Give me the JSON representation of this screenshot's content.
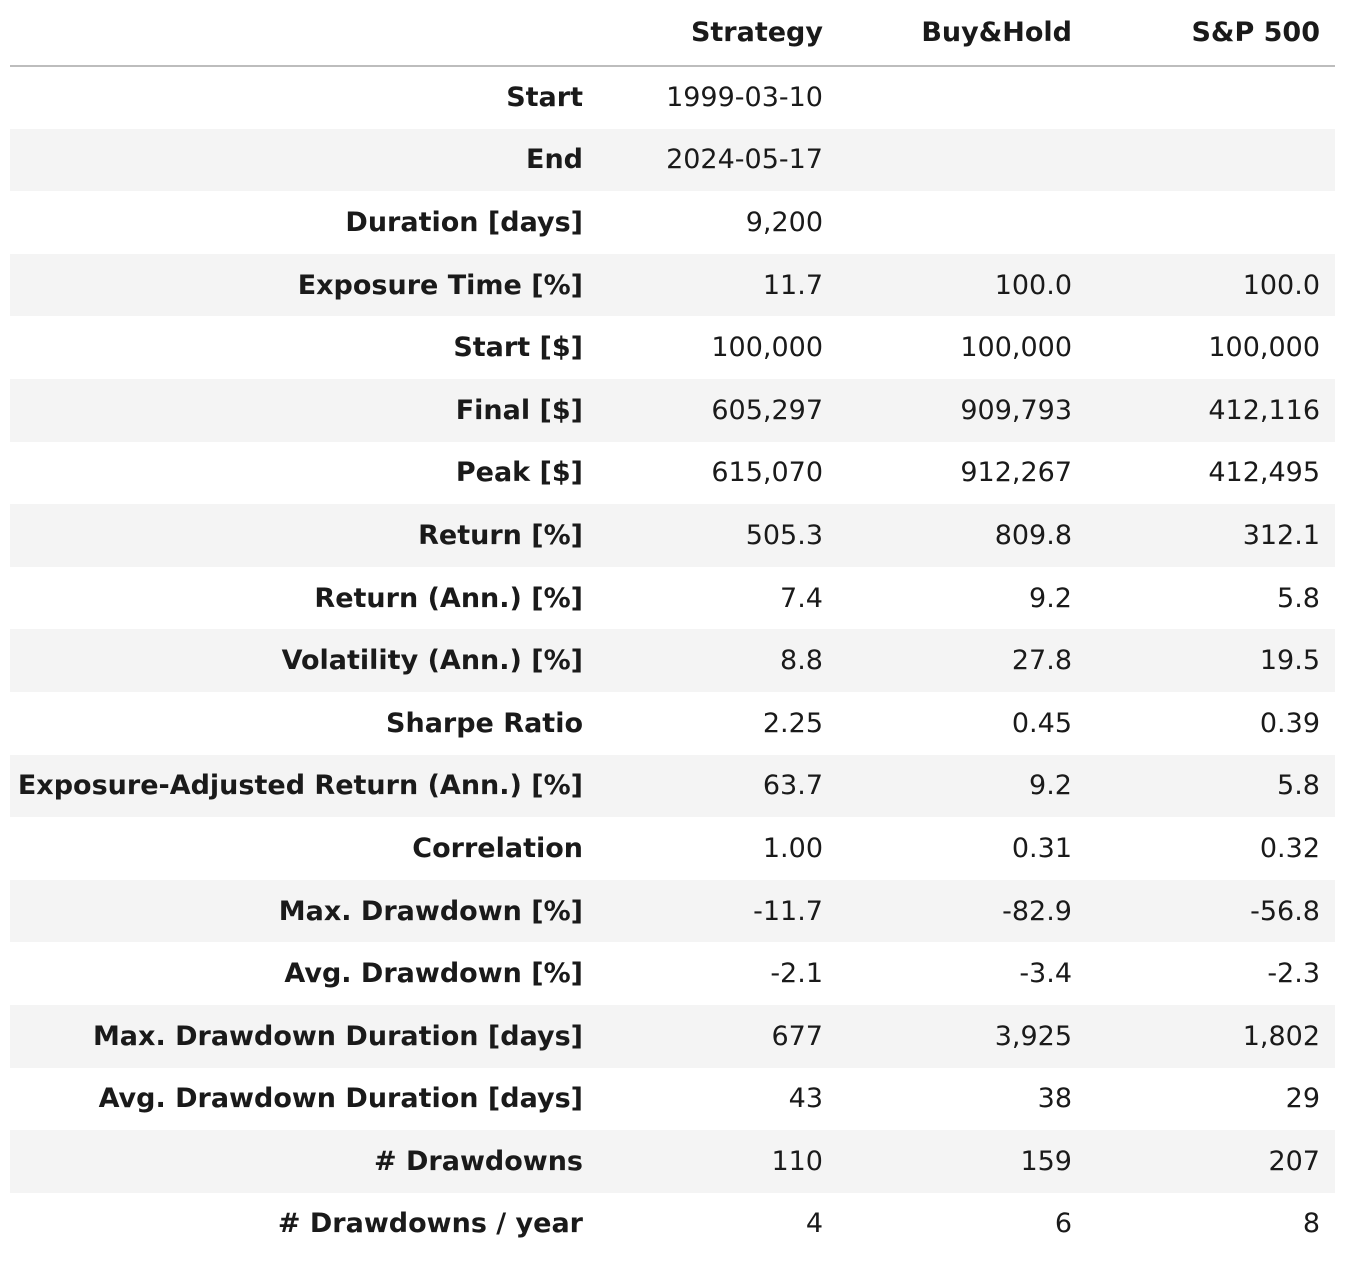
{
  "columns": {
    "strategy": "Strategy",
    "buyhold": "Buy&Hold",
    "sp500": "S&P 500"
  },
  "rows": [
    {
      "label": "Start",
      "strategy": "1999-03-10",
      "buyhold": "",
      "sp500": ""
    },
    {
      "label": "End",
      "strategy": "2024-05-17",
      "buyhold": "",
      "sp500": ""
    },
    {
      "label": "Duration [days]",
      "strategy": "9,200",
      "buyhold": "",
      "sp500": ""
    },
    {
      "label": "Exposure Time [%]",
      "strategy": "11.7",
      "buyhold": "100.0",
      "sp500": "100.0"
    },
    {
      "label": "Start [$]",
      "strategy": "100,000",
      "buyhold": "100,000",
      "sp500": "100,000"
    },
    {
      "label": "Final [$]",
      "strategy": "605,297",
      "buyhold": "909,793",
      "sp500": "412,116"
    },
    {
      "label": "Peak [$]",
      "strategy": "615,070",
      "buyhold": "912,267",
      "sp500": "412,495"
    },
    {
      "label": "Return [%]",
      "strategy": "505.3",
      "buyhold": "809.8",
      "sp500": "312.1"
    },
    {
      "label": "Return (Ann.) [%]",
      "strategy": "7.4",
      "buyhold": "9.2",
      "sp500": "5.8"
    },
    {
      "label": "Volatility (Ann.) [%]",
      "strategy": "8.8",
      "buyhold": "27.8",
      "sp500": "19.5"
    },
    {
      "label": "Sharpe Ratio",
      "strategy": "2.25",
      "buyhold": "0.45",
      "sp500": "0.39"
    },
    {
      "label": "Exposure-Adjusted Return (Ann.) [%]",
      "strategy": "63.7",
      "buyhold": "9.2",
      "sp500": "5.8"
    },
    {
      "label": "Correlation",
      "strategy": "1.00",
      "buyhold": "0.31",
      "sp500": "0.32"
    },
    {
      "label": "Max. Drawdown [%]",
      "strategy": "-11.7",
      "buyhold": "-82.9",
      "sp500": "-56.8"
    },
    {
      "label": "Avg. Drawdown [%]",
      "strategy": "-2.1",
      "buyhold": "-3.4",
      "sp500": "-2.3"
    },
    {
      "label": "Max. Drawdown Duration [days]",
      "strategy": "677",
      "buyhold": "3,925",
      "sp500": "1,802"
    },
    {
      "label": "Avg. Drawdown Duration [days]",
      "strategy": "43",
      "buyhold": "38",
      "sp500": "29"
    },
    {
      "label": "# Drawdowns",
      "strategy": "110",
      "buyhold": "159",
      "sp500": "207"
    },
    {
      "label": "# Drawdowns / year",
      "strategy": "4",
      "buyhold": "6",
      "sp500": "8"
    }
  ]
}
